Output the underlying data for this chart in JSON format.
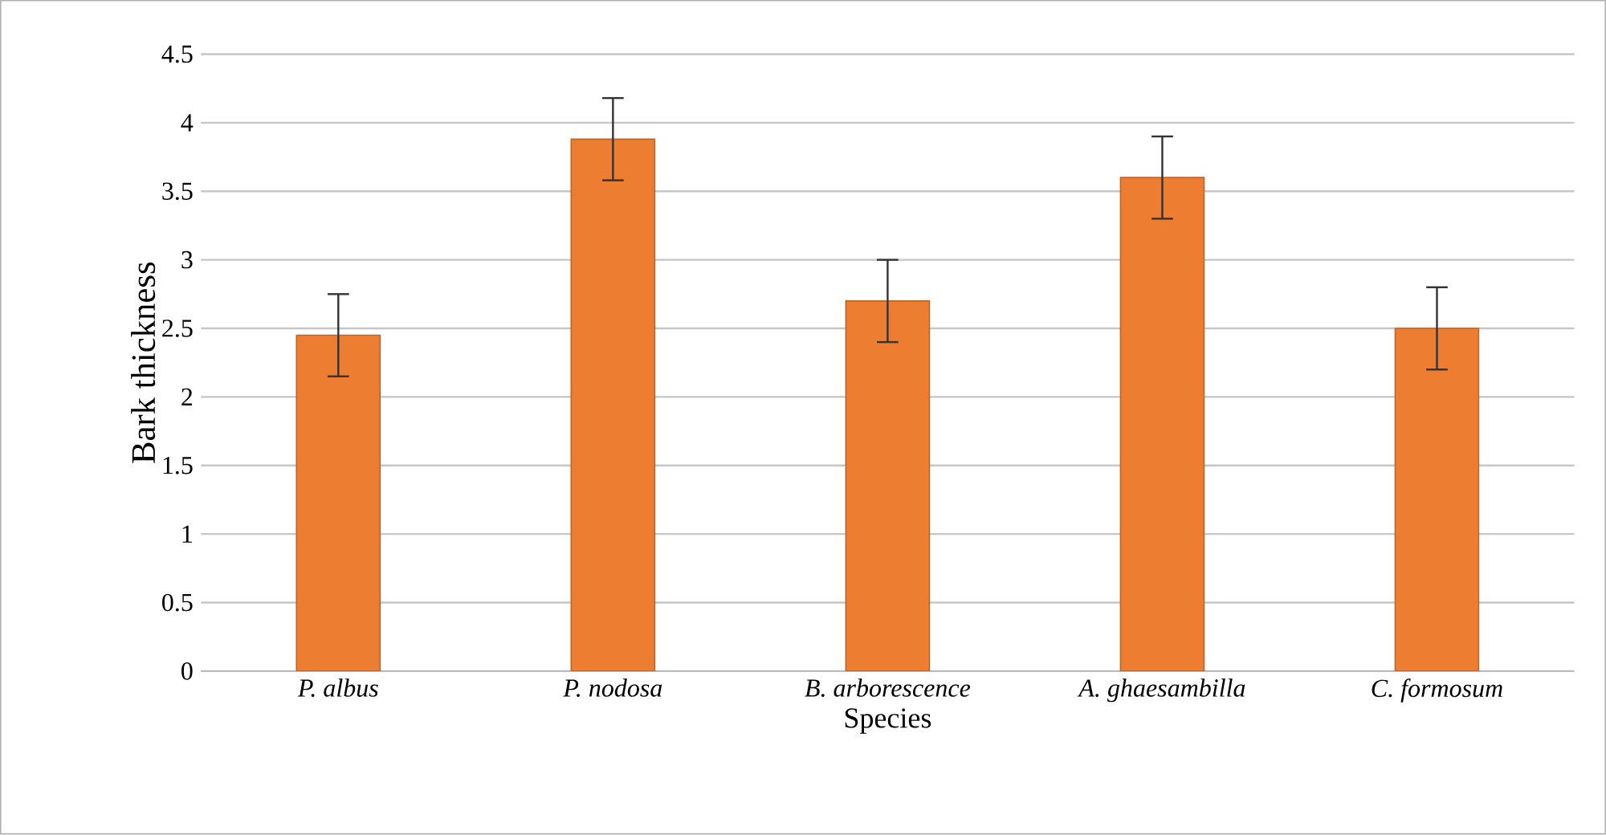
{
  "chart_data": {
    "type": "bar",
    "xlabel": "Species",
    "ylabel": "Bark thickness",
    "categories": [
      "P. albus",
      "P. nodosa",
      "B. arborescence",
      "A. ghaesambilla",
      "C. formosum"
    ],
    "values": [
      2.45,
      3.88,
      2.7,
      3.6,
      2.5
    ],
    "errors": [
      0.3,
      0.3,
      0.3,
      0.3,
      0.3
    ],
    "color": "#ed7d31",
    "ylim": [
      0,
      4.5
    ],
    "yticks": [
      0,
      0.5,
      1,
      1.5,
      2,
      2.5,
      3,
      3.5,
      4,
      4.5
    ],
    "grid": "y"
  }
}
